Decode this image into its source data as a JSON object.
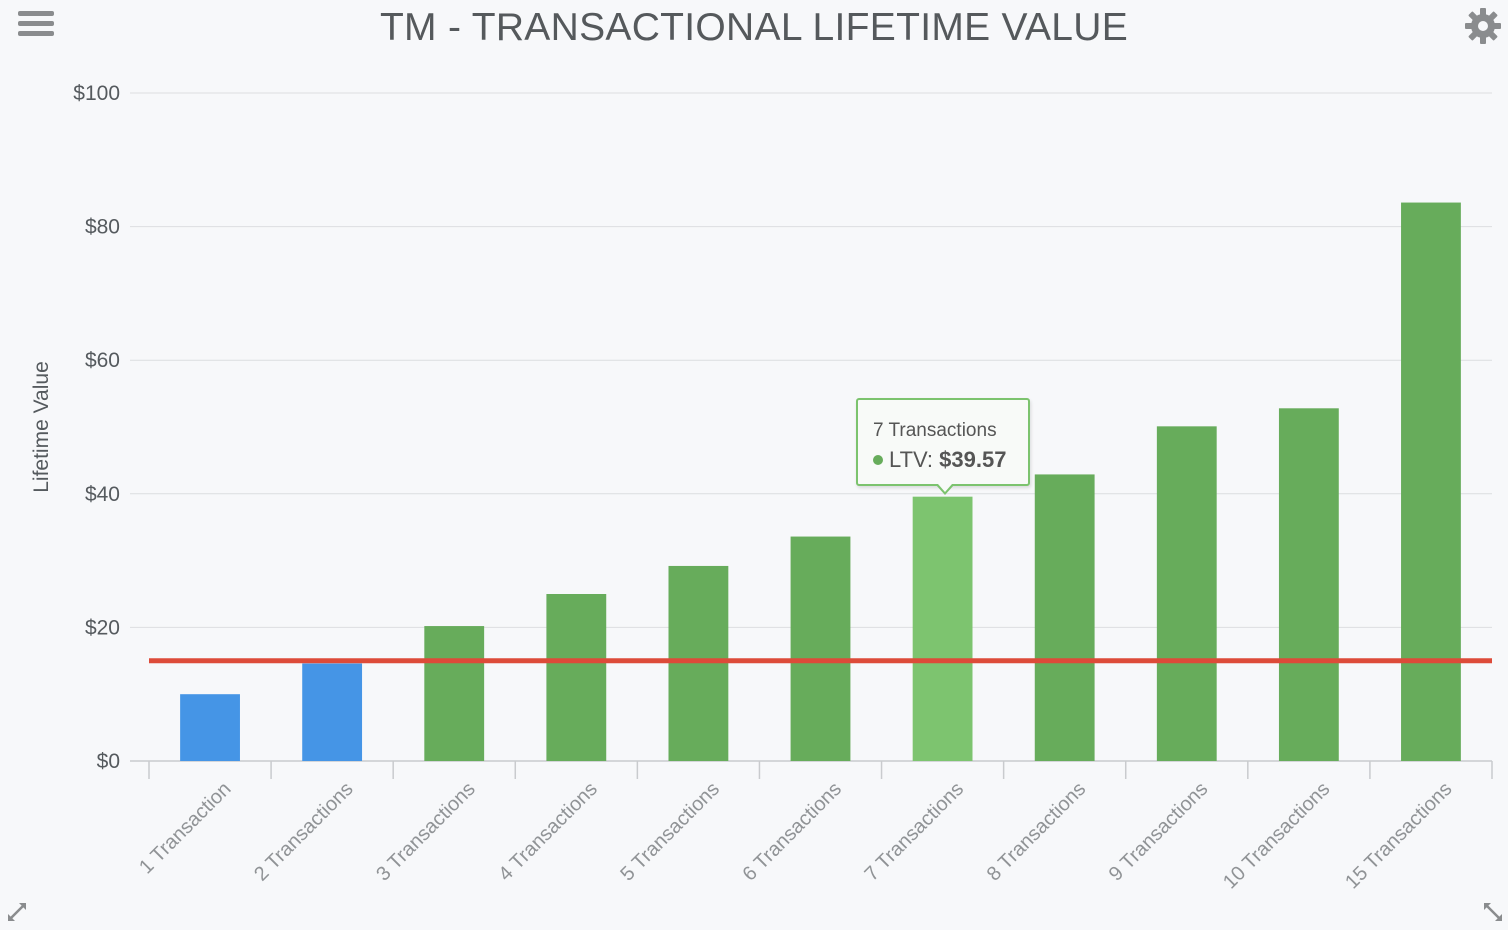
{
  "icons": {
    "menu": "hamburger-menu-icon",
    "settings": "gear-icon",
    "expand_left": "expand-arrows-icon",
    "expand_right": "resize-arrows-icon"
  },
  "colors": {
    "background": "#f7f8fa",
    "bar_below_threshold": "#4595e6",
    "bar_above_threshold": "#67ac5b",
    "bar_hover": "#7dc46f",
    "threshold_line": "#dd4b39",
    "icons": "#8a8c8e"
  },
  "chart_data": {
    "type": "bar",
    "title": "TM - TRANSACTIONAL LIFETIME VALUE",
    "xlabel": "",
    "ylabel": "Lifetime Value",
    "ylim": [
      0,
      100
    ],
    "yticks": [
      0,
      20,
      40,
      60,
      80,
      100
    ],
    "ytick_labels": [
      "$0",
      "$20",
      "$40",
      "$60",
      "$80",
      "$100"
    ],
    "grid": true,
    "categories": [
      "1 Transaction",
      "2 Transactions",
      "3 Transactions",
      "4 Transactions",
      "5 Transactions",
      "6 Transactions",
      "7 Transactions",
      "8 Transactions",
      "9 Transactions",
      "10 Transactions",
      "15 Transactions"
    ],
    "series": [
      {
        "name": "LTV",
        "values": [
          10.0,
          14.6,
          20.2,
          25.0,
          29.2,
          33.6,
          39.57,
          42.9,
          50.1,
          52.8,
          83.6
        ],
        "colors": [
          "#4595e6",
          "#4595e6",
          "#67ac5b",
          "#67ac5b",
          "#67ac5b",
          "#67ac5b",
          "#7dc46f",
          "#67ac5b",
          "#67ac5b",
          "#67ac5b",
          "#67ac5b"
        ]
      }
    ],
    "reference_line": {
      "value": 15,
      "color": "#dd4b39"
    },
    "tooltip": {
      "category": "7 Transactions",
      "series_label": "LTV:",
      "value_label": "$39.57"
    }
  }
}
